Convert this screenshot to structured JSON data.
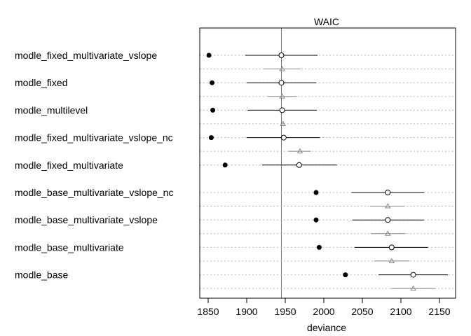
{
  "chart_data": {
    "type": "dot",
    "title": "WAIC",
    "xlabel": "deviance",
    "xlim": [
      1840,
      2160
    ],
    "xticks": [
      1850,
      1900,
      1950,
      2000,
      2050,
      2100,
      2150
    ],
    "reference_line": 1945,
    "grid": "horizontal dotted per model row",
    "legend": "none",
    "series_styles": {
      "in_sample_deviance": "filled black circle",
      "waic": "open circle with interval",
      "dwaic": "grey triangle with interval"
    },
    "models": [
      {
        "name": "modle_fixed_multivariate_vslope",
        "in_sample": 1851,
        "waic": 1945,
        "waic_lo": 1898,
        "waic_hi": 1992,
        "dwaic": 1946,
        "dwaic_lo": 1922,
        "dwaic_hi": 1970
      },
      {
        "name": "modle_fixed",
        "in_sample": 1855,
        "waic": 1945,
        "waic_lo": 1900,
        "waic_hi": 1990,
        "dwaic": 1946,
        "dwaic_lo": 1927,
        "dwaic_hi": 1965
      },
      {
        "name": "modle_multilevel",
        "in_sample": 1856,
        "waic": 1946,
        "waic_lo": 1901,
        "waic_hi": 1991,
        "dwaic": 1947,
        "dwaic_lo": 1945,
        "dwaic_hi": 1949
      },
      {
        "name": "modle_fixed_multivariate_vslope_nc",
        "in_sample": 1854,
        "waic": 1948,
        "waic_lo": 1900,
        "waic_hi": 1995,
        "dwaic": 1969,
        "dwaic_lo": 1954,
        "dwaic_hi": 1983
      },
      {
        "name": "modle_fixed_multivariate",
        "in_sample": 1872,
        "waic": 1968,
        "waic_lo": 1920,
        "waic_hi": 2017,
        "dwaic": null,
        "dwaic_lo": null,
        "dwaic_hi": null
      },
      {
        "name": "modle_base_multivariate_vslope_nc",
        "in_sample": 1990,
        "waic": 2083,
        "waic_lo": 2036,
        "waic_hi": 2130,
        "dwaic": 2083,
        "dwaic_lo": 2060,
        "dwaic_hi": 2105
      },
      {
        "name": "modle_base_multivariate_vslope",
        "in_sample": 1990,
        "waic": 2083,
        "waic_lo": 2037,
        "waic_hi": 2130,
        "dwaic": 2083,
        "dwaic_lo": 2061,
        "dwaic_hi": 2106
      },
      {
        "name": "modle_base_multivariate",
        "in_sample": 1994,
        "waic": 2088,
        "waic_lo": 2040,
        "waic_hi": 2135,
        "dwaic": 2088,
        "dwaic_lo": 2065,
        "dwaic_hi": 2111
      },
      {
        "name": "modle_base",
        "in_sample": 2028,
        "waic": 2116,
        "waic_lo": 2071,
        "waic_hi": 2161,
        "dwaic": 2116,
        "dwaic_lo": 2087,
        "dwaic_hi": 2145
      }
    ]
  }
}
